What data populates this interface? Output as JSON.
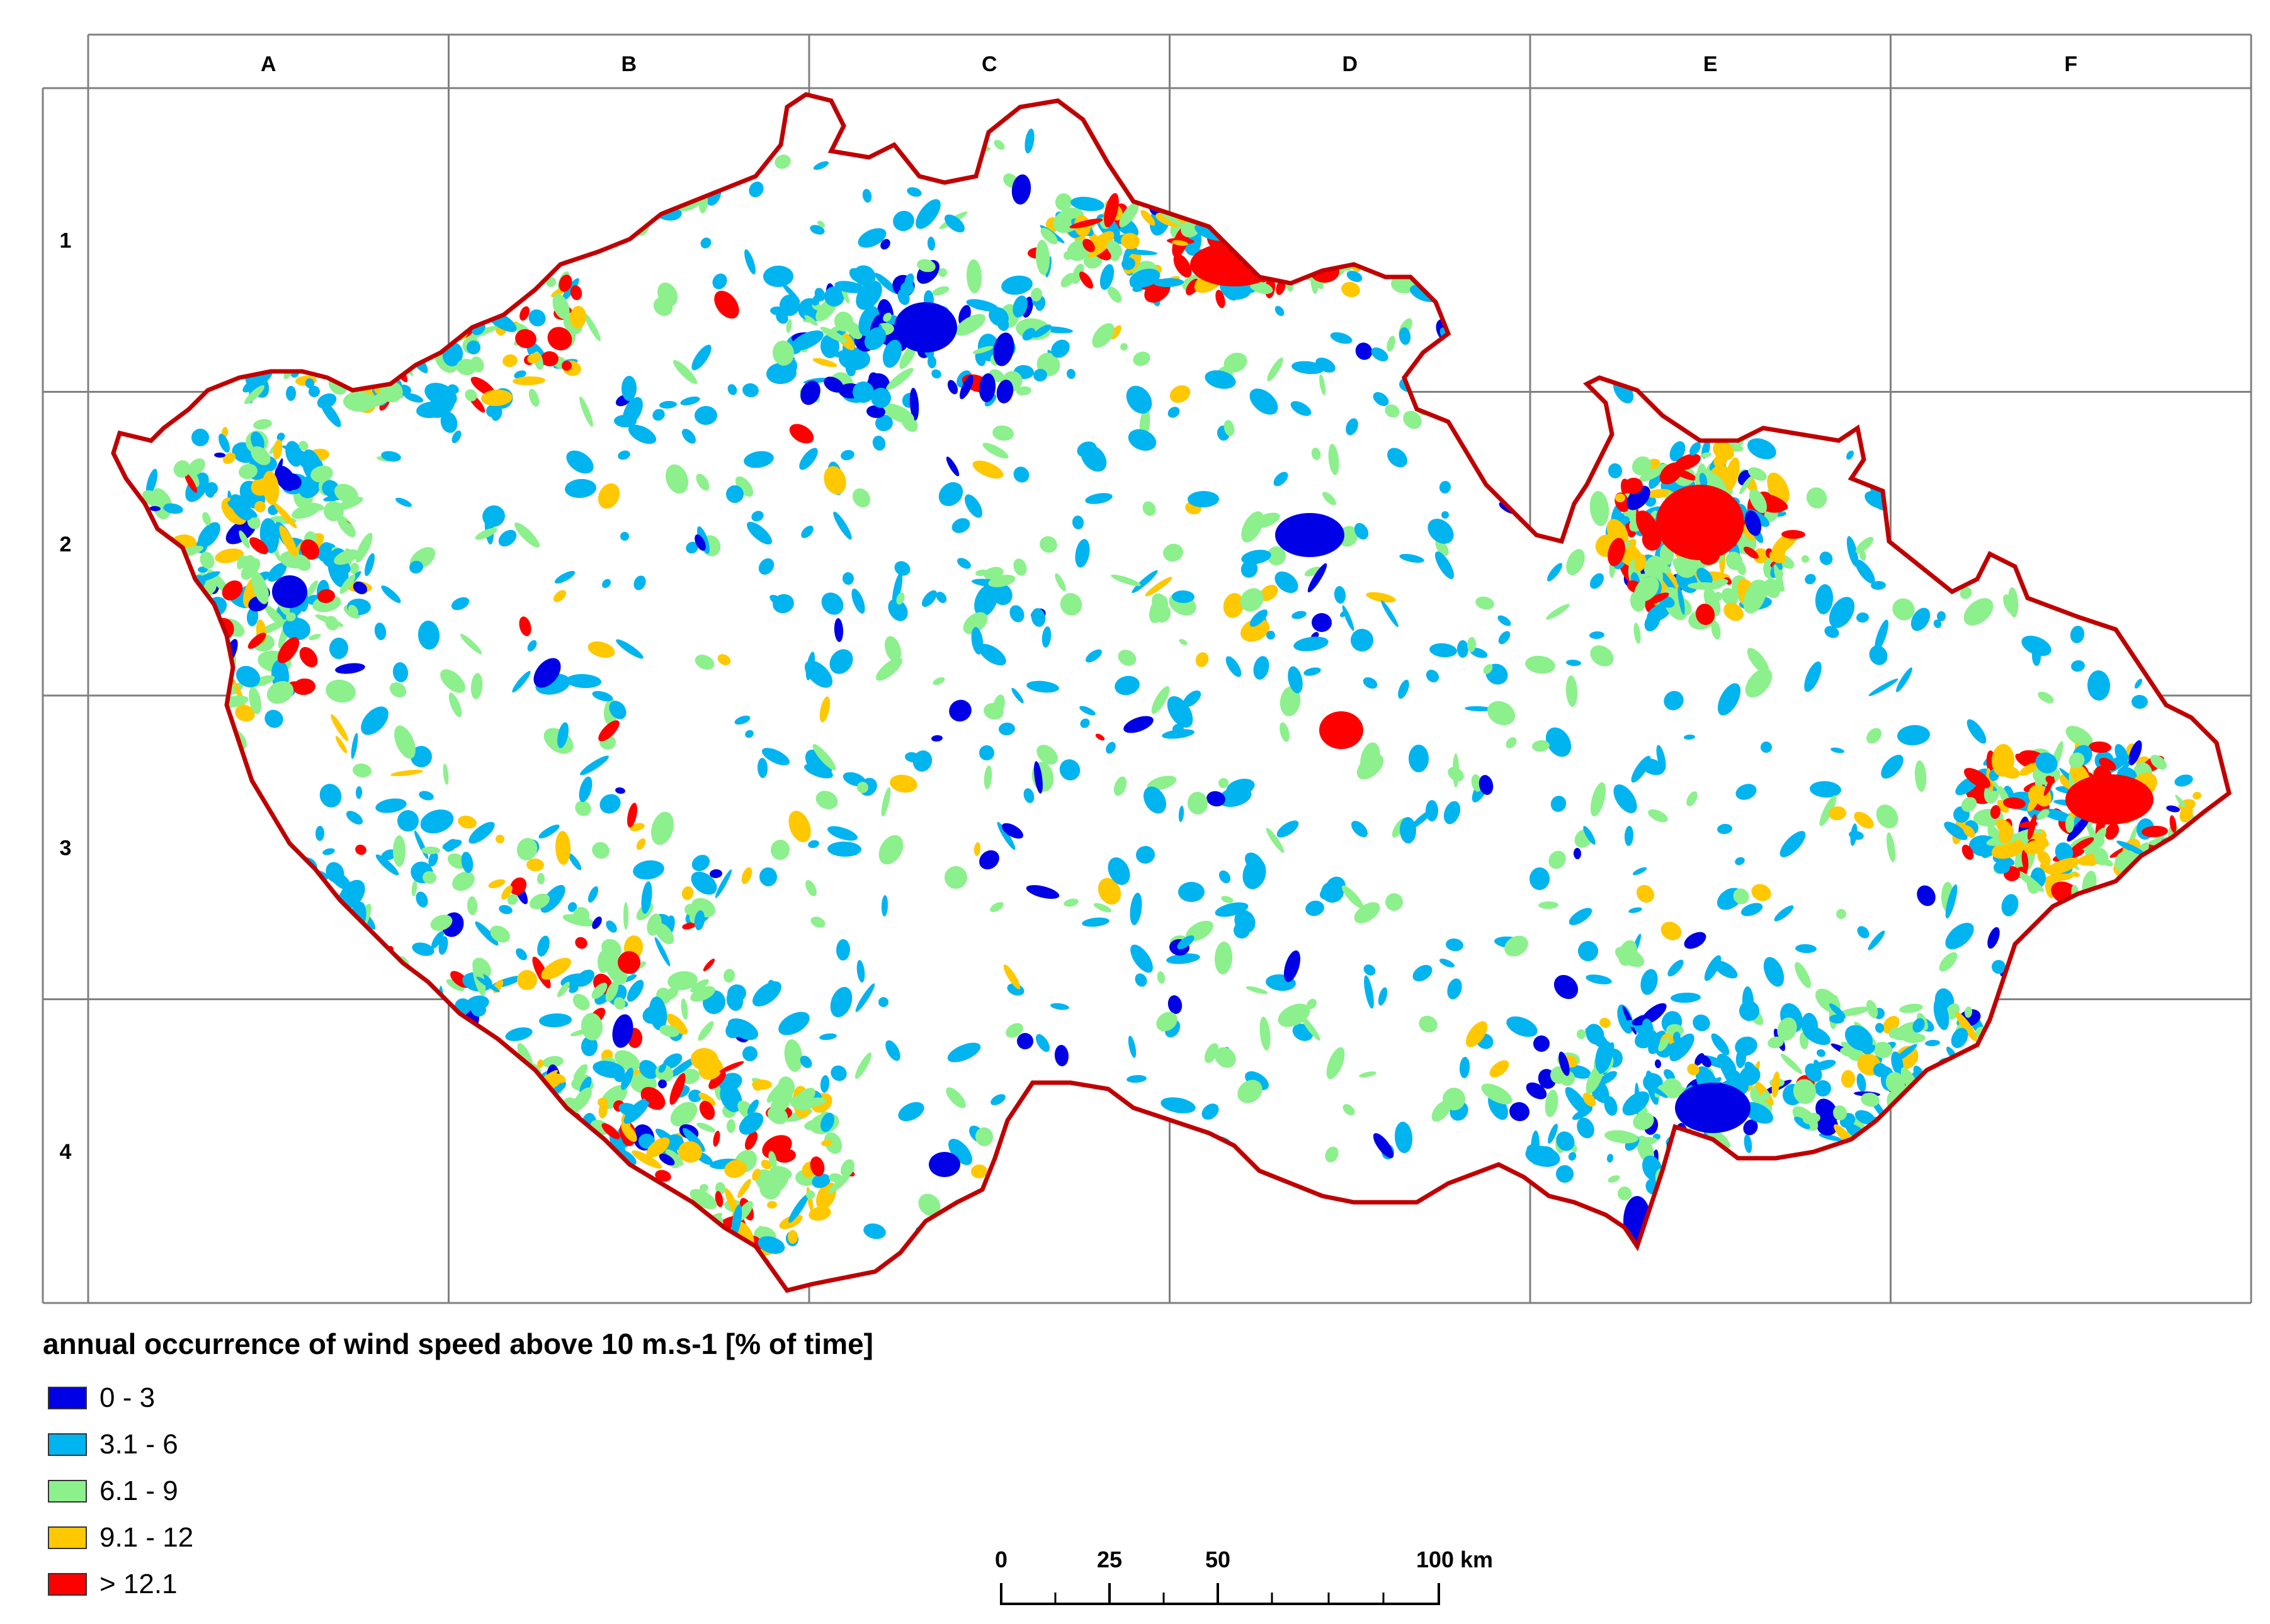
{
  "grid": {
    "columns": [
      "A",
      "B",
      "C",
      "D",
      "E",
      "F"
    ],
    "rows": [
      "1",
      "2",
      "3",
      "4"
    ]
  },
  "legend": {
    "title": "annual occurrence of wind speed above 10 m.s-1 [% of time]",
    "classes": [
      {
        "label": "0 - 3",
        "color": "#0000e6"
      },
      {
        "label": "3.1 - 6",
        "color": "#00b4f0"
      },
      {
        "label": "6.1 - 9",
        "color": "#8cf08c"
      },
      {
        "label": "9.1 - 12",
        "color": "#ffc800"
      },
      {
        "label": "> 12.1",
        "color": "#ff0000"
      }
    ]
  },
  "scale_bar": {
    "ticks": [
      "0",
      "25",
      "50",
      "100 km"
    ]
  },
  "colors": {
    "border": "#c00000",
    "grid": "#808080"
  }
}
